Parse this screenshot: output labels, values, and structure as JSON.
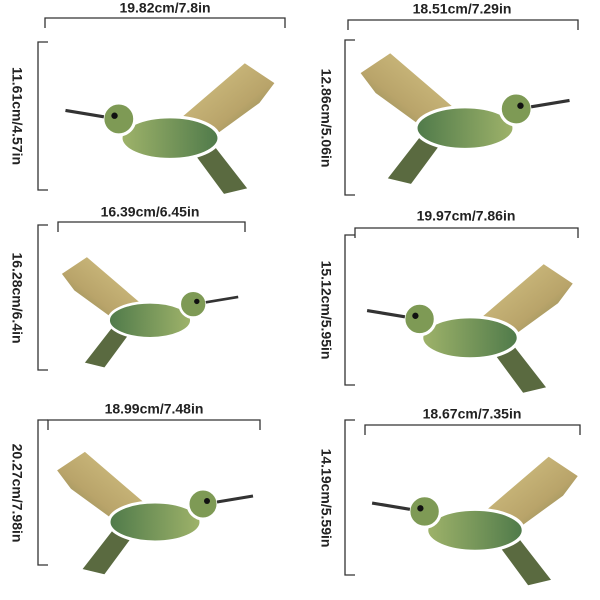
{
  "items": [
    {
      "width": "19.82cm/7.8in",
      "height": "11.61cm/4.57in"
    },
    {
      "width": "18.51cm/7.29in",
      "height": "12.86cm/5.06in"
    },
    {
      "width": "16.39cm/6.45in",
      "height": "16.28cm/6.4in"
    },
    {
      "width": "19.97cm/7.86in",
      "height": "15.12cm/5.95in"
    },
    {
      "width": "18.99cm/7.48in",
      "height": "20.27cm/7.98in"
    },
    {
      "width": "18.67cm/7.35in",
      "height": "14.19cm/5.59in"
    }
  ]
}
